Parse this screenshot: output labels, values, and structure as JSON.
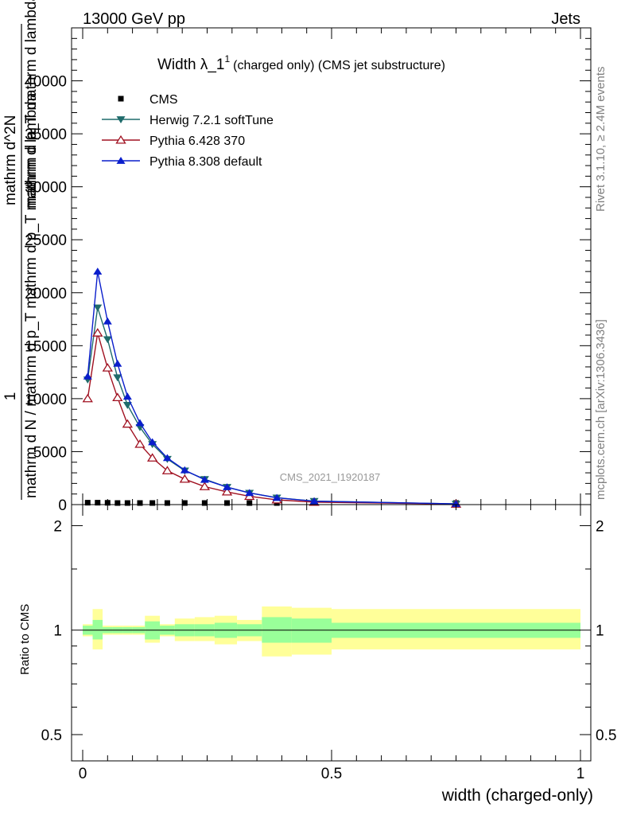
{
  "header": {
    "left": "13000 GeV pp",
    "right": "Jets"
  },
  "side_labels": {
    "rivet": "Rivet 3.1.10, ≥ 2.4M events",
    "mcplots": "mcplots.cern.ch [arXiv:1306.3436]"
  },
  "watermark": "CMS_2021_I1920187",
  "ratio_ylabel": "Ratio to CMS",
  "chart_data": [
    {
      "type": "line",
      "title_main": "Width λ_1",
      "title_sup": "1",
      "title_rest": "(charged only) (CMS jet substructure)",
      "ylabel_lines": [
        "1",
        "mathrm d N / mathrm d p_T mathrm d p_T mathrm d lambda",
        "mathrm d^2N",
        "mathrm d p_T mathrm d lambda"
      ],
      "xlim": [
        0,
        1
      ],
      "ylim": [
        0,
        45000
      ],
      "yticks": [
        0,
        5000,
        10000,
        15000,
        20000,
        25000,
        30000,
        35000,
        40000
      ],
      "ytick_labels": [
        "0",
        "5000",
        "10000",
        "15000",
        "20000",
        "25000",
        "30000",
        "35000",
        "40000"
      ],
      "legend_position": "top-left",
      "x": [
        0.01,
        0.03,
        0.05,
        0.07,
        0.09,
        0.115,
        0.14,
        0.17,
        0.205,
        0.245,
        0.29,
        0.335,
        0.39,
        0.465,
        0.75
      ],
      "series": [
        {
          "name": "CMS",
          "color": "#000000",
          "marker": "square",
          "values": [
            180,
            180,
            170,
            150,
            130,
            110,
            95,
            80,
            65,
            50,
            38,
            28,
            18,
            10,
            2
          ]
        },
        {
          "name": "Herwig 7.2.1 softTune",
          "color": "#1f6b6b",
          "marker": "triangle-down",
          "values": [
            11800,
            18600,
            15600,
            12000,
            9400,
            7300,
            5700,
            4300,
            3200,
            2400,
            1650,
            1100,
            650,
            330,
            70
          ]
        },
        {
          "name": "Pythia 6.428 370",
          "color": "#a01020",
          "marker": "triangle-open",
          "values": [
            10000,
            16200,
            12900,
            10100,
            7600,
            5700,
            4400,
            3200,
            2400,
            1700,
            1200,
            780,
            450,
            230,
            50
          ]
        },
        {
          "name": "Pythia 8.308 default",
          "color": "#0a1ecc",
          "marker": "triangle-up",
          "values": [
            12100,
            22000,
            17300,
            13300,
            10200,
            7700,
            5900,
            4400,
            3250,
            2350,
            1650,
            1100,
            640,
            320,
            70
          ]
        }
      ]
    },
    {
      "type": "area",
      "xlabel": "width (charged-only)",
      "ylabel": "Ratio to CMS",
      "xlim": [
        0,
        1
      ],
      "ylim": [
        0.42,
        2.3
      ],
      "log_y": true,
      "yticks": [
        0.5,
        1,
        2
      ],
      "ytick_labels": [
        "0.5",
        "1",
        "2"
      ],
      "xticks": [
        0,
        0.5,
        1
      ],
      "xtick_labels": [
        "0",
        "0.5",
        "1"
      ],
      "bin_edges": [
        0.0,
        0.02,
        0.04,
        0.06,
        0.08,
        0.1,
        0.125,
        0.155,
        0.185,
        0.225,
        0.265,
        0.31,
        0.36,
        0.42,
        0.5,
        1.0
      ],
      "stat_band": [
        [
          0.97,
          1.03
        ],
        [
          0.94,
          1.07
        ],
        [
          0.98,
          1.02
        ],
        [
          0.98,
          1.02
        ],
        [
          0.98,
          1.02
        ],
        [
          0.98,
          1.02
        ],
        [
          0.94,
          1.06
        ],
        [
          0.97,
          1.03
        ],
        [
          0.96,
          1.04
        ],
        [
          0.96,
          1.04
        ],
        [
          0.95,
          1.05
        ],
        [
          0.96,
          1.04
        ],
        [
          0.92,
          1.09
        ],
        [
          0.92,
          1.08
        ],
        [
          0.95,
          1.05
        ]
      ],
      "syst_band": [
        [
          0.96,
          1.04
        ],
        [
          0.88,
          1.15
        ],
        [
          0.97,
          1.03
        ],
        [
          0.97,
          1.03
        ],
        [
          0.97,
          1.03
        ],
        [
          0.97,
          1.03
        ],
        [
          0.92,
          1.1
        ],
        [
          0.96,
          1.04
        ],
        [
          0.93,
          1.08
        ],
        [
          0.93,
          1.09
        ],
        [
          0.91,
          1.1
        ],
        [
          0.93,
          1.07
        ],
        [
          0.84,
          1.17
        ],
        [
          0.85,
          1.16
        ],
        [
          0.88,
          1.15
        ]
      ],
      "stat_color": "#99ff99",
      "syst_color": "#ffff99"
    }
  ]
}
